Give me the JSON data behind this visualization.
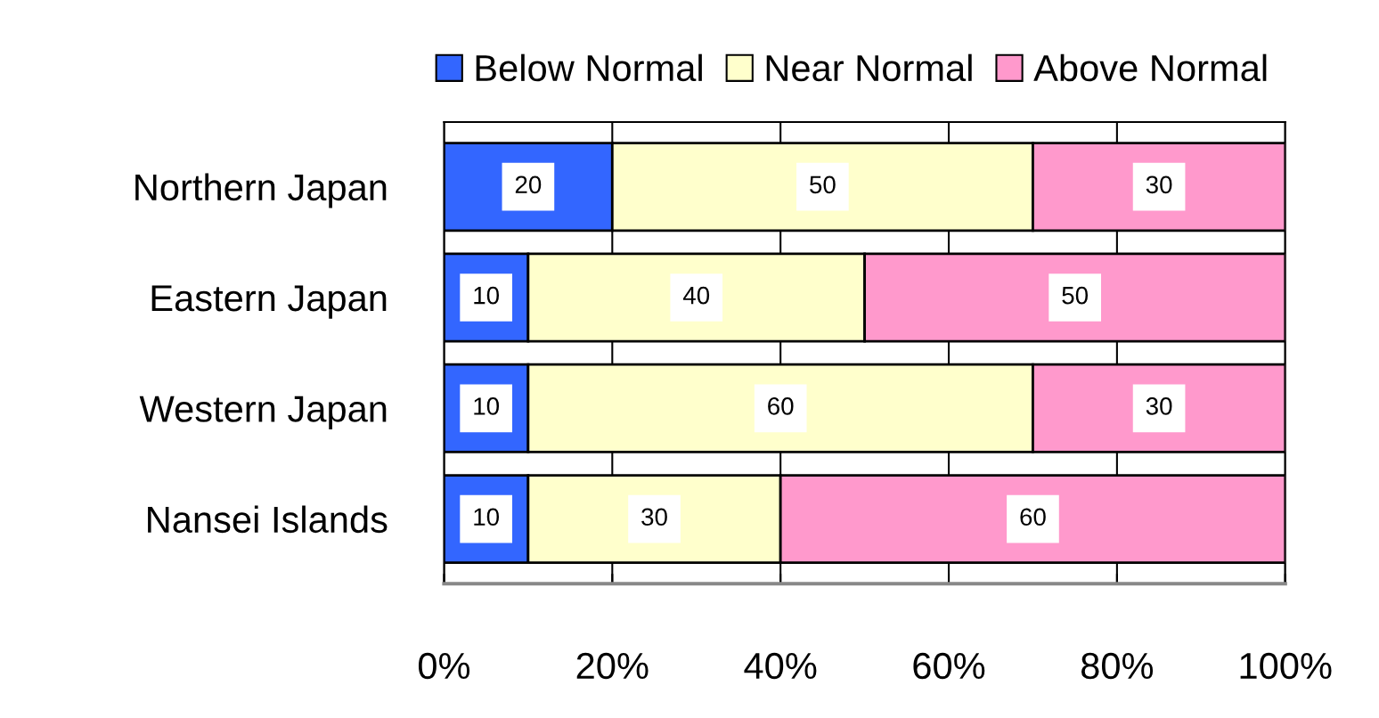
{
  "chart_data": {
    "type": "bar",
    "orientation": "horizontal",
    "stacked": true,
    "categories": [
      "Northern Japan",
      "Eastern Japan",
      "Western Japan",
      "Nansei Islands"
    ],
    "series": [
      {
        "name": "Below Normal",
        "color": "#3366ff",
        "values": [
          20,
          10,
          10,
          10
        ]
      },
      {
        "name": "Near Normal",
        "color": "#ffffcc",
        "values": [
          50,
          40,
          60,
          30
        ]
      },
      {
        "name": "Above Normal",
        "color": "#ff99cc",
        "values": [
          30,
          50,
          30,
          60
        ]
      }
    ],
    "xlim": [
      0,
      100
    ],
    "xticks": [
      {
        "value": 0,
        "label": "0%"
      },
      {
        "value": 20,
        "label": "20%"
      },
      {
        "value": 40,
        "label": "40%"
      },
      {
        "value": 60,
        "label": "60%"
      },
      {
        "value": 80,
        "label": "80%"
      },
      {
        "value": 100,
        "label": "100%"
      }
    ],
    "grid": "x",
    "legend": "top right",
    "data_labels": true
  }
}
